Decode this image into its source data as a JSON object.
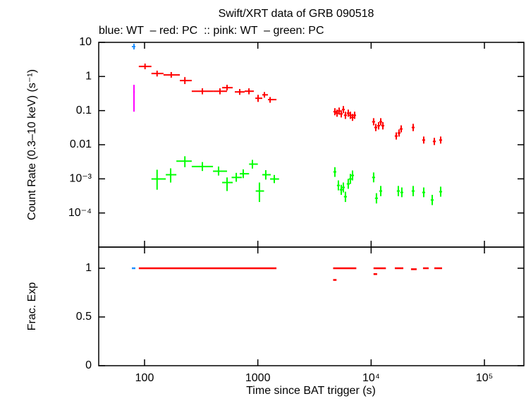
{
  "chart_data": [
    {
      "type": "scatter",
      "title": "Swift/XRT data of GRB 090518",
      "subtitle": "blue: WT  – red: PC  :: pink: WT  – green: PC",
      "ylabel": "Count Rate (0.3–10 keV) (s⁻¹)",
      "xscale": "log",
      "yscale": "log",
      "xlim": [
        39.4,
        223000
      ],
      "ylim": [
        1e-05,
        10
      ],
      "yticks": [
        10,
        1,
        0.1,
        0.01,
        {
          "value": 0.001,
          "label": "10⁻³"
        },
        {
          "value": 0.0001,
          "label": "10⁻⁴"
        }
      ],
      "series": [
        {
          "color": "#2090ff",
          "x": [
            80.7
          ],
          "x_lo": [
            77.3
          ],
          "x_hi": [
            83.0
          ],
          "values": [
            7.5
          ],
          "y_lo": [
            6.2
          ],
          "y_hi": [
            9.1
          ]
        },
        {
          "color": "#ff00ff",
          "x": [
            80.7
          ],
          "x_lo": [
            79.5
          ],
          "x_hi": [
            82.0
          ],
          "values": [
            0.35
          ],
          "y_lo": [
            0.093
          ],
          "y_hi": [
            0.57
          ]
        },
        {
          "color": "#ff0000",
          "x": [
            101,
            129,
            172,
            227,
            324,
            463,
            535,
            692,
            835,
            1005,
            1143,
            1283,
            4786,
            5000,
            5217,
            5447,
            5686,
            5931,
            6281,
            6561,
            6850,
            7150,
            10520,
            10990,
            11640,
            12160,
            12690,
            16660,
            17630,
            18410,
            23490,
            29120,
            36120,
            41090
          ],
          "x_lo": [
            89,
            115,
            147,
            205,
            261,
            402,
            484,
            626,
            765,
            950,
            1095,
            1228,
            4640,
            4850,
            5060,
            5280,
            5520,
            5750,
            6090,
            6360,
            6640,
            6940,
            10200,
            10660,
            11290,
            11800,
            12310,
            16160,
            17100,
            17860,
            22790,
            28250,
            35040,
            39860
          ],
          "x_hi": [
            115,
            147,
            205,
            261,
            402,
            535,
            600,
            765,
            922,
            1095,
            1228,
            1460,
            4930,
            5150,
            5370,
            5610,
            5860,
            6110,
            6470,
            6760,
            7060,
            7360,
            10840,
            11320,
            11990,
            12520,
            13070,
            17160,
            18160,
            18960,
            24190,
            29990,
            37200,
            42320
          ],
          "values": [
            1.97,
            1.22,
            1.11,
            0.76,
            0.37,
            0.37,
            0.47,
            0.353,
            0.37,
            0.23,
            0.29,
            0.21,
            0.093,
            0.084,
            0.097,
            0.08,
            0.107,
            0.073,
            0.084,
            0.073,
            0.063,
            0.073,
            0.047,
            0.032,
            0.036,
            0.047,
            0.036,
            0.018,
            0.022,
            0.029,
            0.032,
            0.0137,
            0.0125,
            0.0137
          ],
          "y_lo": [
            1.63,
            1.0,
            0.92,
            0.6,
            0.3,
            0.3,
            0.39,
            0.29,
            0.3,
            0.18,
            0.24,
            0.17,
            0.073,
            0.066,
            0.076,
            0.063,
            0.084,
            0.057,
            0.066,
            0.057,
            0.05,
            0.057,
            0.037,
            0.025,
            0.028,
            0.037,
            0.028,
            0.0142,
            0.0173,
            0.023,
            0.025,
            0.0108,
            0.0098,
            0.0108
          ],
          "y_hi": [
            2.39,
            1.48,
            1.35,
            0.96,
            0.45,
            0.45,
            0.57,
            0.43,
            0.45,
            0.29,
            0.35,
            0.25,
            0.118,
            0.107,
            0.123,
            0.102,
            0.136,
            0.093,
            0.107,
            0.093,
            0.08,
            0.093,
            0.06,
            0.041,
            0.046,
            0.06,
            0.046,
            0.023,
            0.028,
            0.037,
            0.041,
            0.0174,
            0.0159,
            0.0174
          ]
        },
        {
          "color": "#00ff00",
          "x": [
            129,
            170,
            227,
            324,
            450,
            535,
            645,
            743,
            896,
            1033,
            1175,
            1397,
            4786,
            5140,
            5447,
            5686,
            5931,
            6281,
            6561,
            6850,
            10520,
            11140,
            12160,
            17380,
            18660,
            23490,
            29120,
            34600,
            41090
          ],
          "x_lo": [
            115,
            154,
            191,
            261,
            402,
            484,
            587,
            692,
            837,
            958,
            1095,
            1283,
            4640,
            4990,
            5280,
            5520,
            5750,
            6090,
            6360,
            6640,
            10200,
            10810,
            11800,
            16860,
            18100,
            22790,
            28250,
            33560,
            39860
          ],
          "x_hi": [
            154,
            191,
            261,
            402,
            535,
            600,
            722,
            837,
            1000,
            1135,
            1300,
            1540,
            4930,
            5290,
            5610,
            5860,
            6110,
            6470,
            6760,
            7060,
            10840,
            11470,
            12520,
            17900,
            19220,
            24190,
            29990,
            35640,
            42320
          ],
          "values": [
            0.00099,
            0.00132,
            0.0033,
            0.0023,
            0.00168,
            0.00078,
            0.0011,
            0.00141,
            0.0027,
            0.00044,
            0.00132,
            0.00099,
            0.0016,
            0.00064,
            0.00048,
            0.00056,
            0.0003,
            0.00071,
            0.00099,
            0.00126,
            0.0011,
            0.00027,
            0.00044,
            0.00044,
            0.0004,
            0.00044,
            0.0004,
            0.00024,
            0.00042
          ],
          "y_lo": [
            0.00048,
            0.00078,
            0.0022,
            0.0017,
            0.00125,
            0.00044,
            0.00082,
            0.00105,
            0.002,
            0.00021,
            0.00095,
            0.00075,
            0.00114,
            0.00046,
            0.00034,
            0.0004,
            0.00021,
            0.00051,
            0.00071,
            0.0009,
            0.00079,
            0.00019,
            0.00031,
            0.00031,
            0.00029,
            0.00031,
            0.00029,
            0.00017,
            0.0003
          ],
          "y_hi": [
            0.00185,
            0.00203,
            0.0046,
            0.0031,
            0.0023,
            0.0011,
            0.0015,
            0.0019,
            0.0036,
            0.00078,
            0.0018,
            0.0013,
            0.0022,
            0.0009,
            0.00067,
            0.00078,
            0.00042,
            0.001,
            0.0014,
            0.00176,
            0.00154,
            0.00038,
            0.00062,
            0.00062,
            0.00056,
            0.00062,
            0.00056,
            0.00034,
            0.00059
          ]
        }
      ]
    },
    {
      "type": "segments",
      "xlabel": "Time since BAT trigger (s)",
      "ylabel": "Frac. Exp",
      "xscale": "log",
      "yscale": "linear",
      "xlim": [
        39.4,
        223000
      ],
      "ylim": [
        0,
        1.217
      ],
      "xticks": [
        100,
        1000,
        {
          "value": 10000,
          "label": "10⁴"
        },
        {
          "value": 100000,
          "label": "10⁵"
        }
      ],
      "yticks": [
        0,
        0.5,
        1
      ],
      "series": [
        {
          "color": "#2090ff",
          "x_lo": [
            77.3
          ],
          "x_hi": [
            83.0
          ],
          "values": [
            1
          ]
        },
        {
          "color": "#ff0000",
          "x_lo": [
            89,
            4620,
            4620,
            10500,
            10500,
            16180,
            22490,
            28700,
            36120
          ],
          "x_hi": [
            1460,
            7400,
            4950,
            13500,
            11300,
            19230,
            25230,
            32190,
            42280
          ],
          "values": [
            1,
            1,
            0.88,
            1,
            0.94,
            1,
            0.99,
            1,
            1
          ]
        }
      ]
    }
  ]
}
